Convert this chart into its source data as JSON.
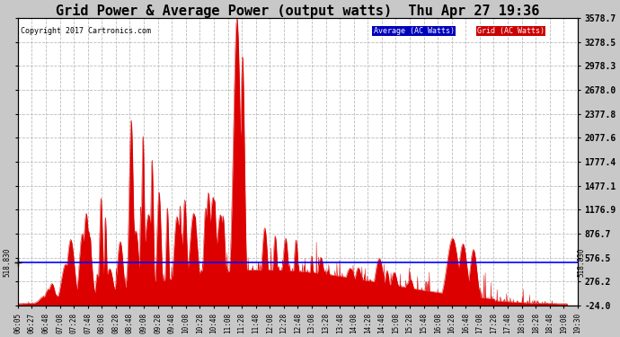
{
  "title": "Grid Power & Average Power (output watts)  Thu Apr 27 19:36",
  "copyright": "Copyright 2017 Cartronics.com",
  "legend_labels": [
    "Average (AC Watts)",
    "Grid (AC Watts)"
  ],
  "legend_bg_colors": [
    "#0000bb",
    "#cc0000"
  ],
  "yticks_right": [
    3578.7,
    3278.5,
    2978.3,
    2678.0,
    2377.8,
    2077.6,
    1777.4,
    1477.1,
    1176.9,
    876.7,
    576.5,
    276.2,
    -24.0
  ],
  "ymin": -24.0,
  "ymax": 3578.7,
  "hline_value": 518.83,
  "hline_label": "518.830",
  "area_color": "#dd0000",
  "background_color": "#c8c8c8",
  "plot_bg_color": "#ffffff",
  "grid_color": "#cccccc",
  "title_fontsize": 11,
  "xtick_labels": [
    "06:05",
    "06:27",
    "06:48",
    "07:08",
    "07:28",
    "07:48",
    "08:08",
    "08:28",
    "08:48",
    "09:08",
    "09:28",
    "09:48",
    "10:08",
    "10:28",
    "10:48",
    "11:08",
    "11:28",
    "11:48",
    "12:08",
    "12:28",
    "12:48",
    "13:08",
    "13:28",
    "13:48",
    "14:08",
    "14:28",
    "14:48",
    "15:08",
    "15:28",
    "15:48",
    "16:08",
    "16:28",
    "16:48",
    "17:08",
    "17:28",
    "17:48",
    "18:08",
    "18:28",
    "18:48",
    "19:08",
    "19:30"
  ]
}
